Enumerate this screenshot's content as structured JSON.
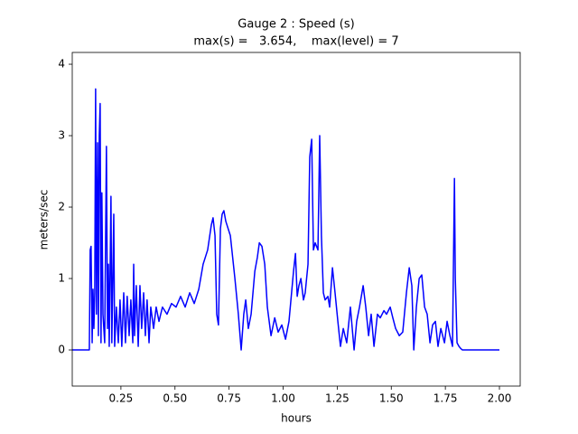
{
  "chart_data": {
    "type": "line",
    "title": "Gauge 2 : Speed (s)",
    "subtitle": "max(s) =   3.654,    max(level) = 7",
    "x_label": "hours",
    "y_label": "meters/sec",
    "xlim": [
      0.025,
      2.096
    ],
    "ylim": [
      -0.506,
      4.165
    ],
    "xticks": [
      0.25,
      {
        "value": 0.5,
        "label": "0.50"
      },
      0.75,
      {
        "value": 1.0,
        "label": "1.00"
      },
      1.25,
      {
        "value": 1.5,
        "label": "1.50"
      },
      1.75,
      {
        "value": 2.0,
        "label": "2.00"
      }
    ],
    "yticks": [
      0,
      1,
      2,
      3,
      4
    ],
    "x": [
      0.025,
      0.104,
      0.108,
      0.112,
      0.117,
      0.121,
      0.125,
      0.129,
      0.133,
      0.137,
      0.142,
      0.146,
      0.15,
      0.154,
      0.158,
      0.162,
      0.167,
      0.175,
      0.183,
      0.188,
      0.192,
      0.196,
      0.204,
      0.208,
      0.217,
      0.221,
      0.229,
      0.238,
      0.246,
      0.254,
      0.263,
      0.271,
      0.279,
      0.288,
      0.296,
      0.305,
      0.309,
      0.313,
      0.321,
      0.33,
      0.338,
      0.346,
      0.355,
      0.363,
      0.371,
      0.38,
      0.388,
      0.401,
      0.413,
      0.426,
      0.442,
      0.463,
      0.484,
      0.505,
      0.526,
      0.547,
      0.568,
      0.589,
      0.61,
      0.63,
      0.651,
      0.668,
      0.676,
      0.685,
      0.693,
      0.701,
      0.71,
      0.718,
      0.726,
      0.735,
      0.756,
      0.777,
      0.793,
      0.806,
      0.818,
      0.827,
      0.839,
      0.852,
      0.869,
      0.881,
      0.89,
      0.902,
      0.915,
      0.927,
      0.944,
      0.961,
      0.977,
      0.994,
      1.011,
      1.027,
      1.048,
      1.057,
      1.065,
      1.073,
      1.082,
      1.094,
      1.102,
      1.115,
      1.123,
      1.132,
      1.14,
      1.148,
      1.161,
      1.169,
      1.177,
      1.186,
      1.194,
      1.207,
      1.215,
      1.228,
      1.24,
      1.253,
      1.265,
      1.278,
      1.294,
      1.311,
      1.328,
      1.34,
      1.353,
      1.37,
      1.382,
      1.395,
      1.407,
      1.42,
      1.436,
      1.449,
      1.466,
      1.478,
      1.495,
      1.507,
      1.52,
      1.537,
      1.553,
      1.57,
      1.583,
      1.595,
      1.604,
      1.616,
      1.629,
      1.641,
      1.654,
      1.666,
      1.679,
      1.691,
      1.704,
      1.716,
      1.729,
      1.746,
      1.758,
      1.771,
      1.783,
      1.792,
      1.796,
      1.804,
      1.813,
      1.821,
      1.829,
      2.0
    ],
    "series": [
      {
        "name": "s",
        "color": "#0000ff",
        "values": [
          0,
          0,
          1.4,
          1.45,
          0.1,
          0.85,
          0.3,
          0.8,
          3.654,
          0.5,
          2.9,
          0.2,
          3.0,
          3.45,
          0.1,
          2.2,
          0.5,
          0.1,
          2.85,
          0.3,
          1.2,
          0.05,
          2.15,
          0.1,
          1.9,
          0.05,
          0.6,
          0.1,
          0.7,
          0.05,
          0.8,
          0.1,
          0.75,
          0.2,
          0.7,
          0.1,
          1.2,
          0.2,
          0.9,
          0.05,
          0.9,
          0.3,
          0.8,
          0.2,
          0.7,
          0.1,
          0.6,
          0.3,
          0.6,
          0.4,
          0.6,
          0.5,
          0.65,
          0.6,
          0.75,
          0.6,
          0.8,
          0.65,
          0.85,
          1.2,
          1.4,
          1.75,
          1.85,
          1.6,
          0.5,
          0.35,
          1.7,
          1.9,
          1.95,
          1.8,
          1.6,
          1.0,
          0.5,
          0.0,
          0.5,
          0.7,
          0.3,
          0.5,
          1.1,
          1.3,
          1.5,
          1.45,
          1.2,
          0.6,
          0.2,
          0.45,
          0.25,
          0.35,
          0.15,
          0.4,
          1.1,
          1.35,
          0.75,
          0.9,
          1.0,
          0.7,
          0.8,
          1.2,
          2.7,
          2.95,
          1.4,
          1.5,
          1.4,
          3.0,
          1.6,
          0.8,
          0.7,
          0.75,
          0.6,
          1.15,
          0.8,
          0.4,
          0.05,
          0.3,
          0.1,
          0.6,
          0.0,
          0.4,
          0.6,
          0.9,
          0.6,
          0.2,
          0.5,
          0.05,
          0.5,
          0.45,
          0.55,
          0.5,
          0.6,
          0.45,
          0.3,
          0.2,
          0.25,
          0.8,
          1.15,
          0.9,
          0.0,
          0.6,
          1.0,
          1.05,
          0.6,
          0.5,
          0.1,
          0.35,
          0.4,
          0.05,
          0.3,
          0.1,
          0.4,
          0.2,
          0.05,
          2.4,
          1.0,
          0.1,
          0.05,
          0.02,
          0.0,
          0.0
        ]
      }
    ]
  }
}
